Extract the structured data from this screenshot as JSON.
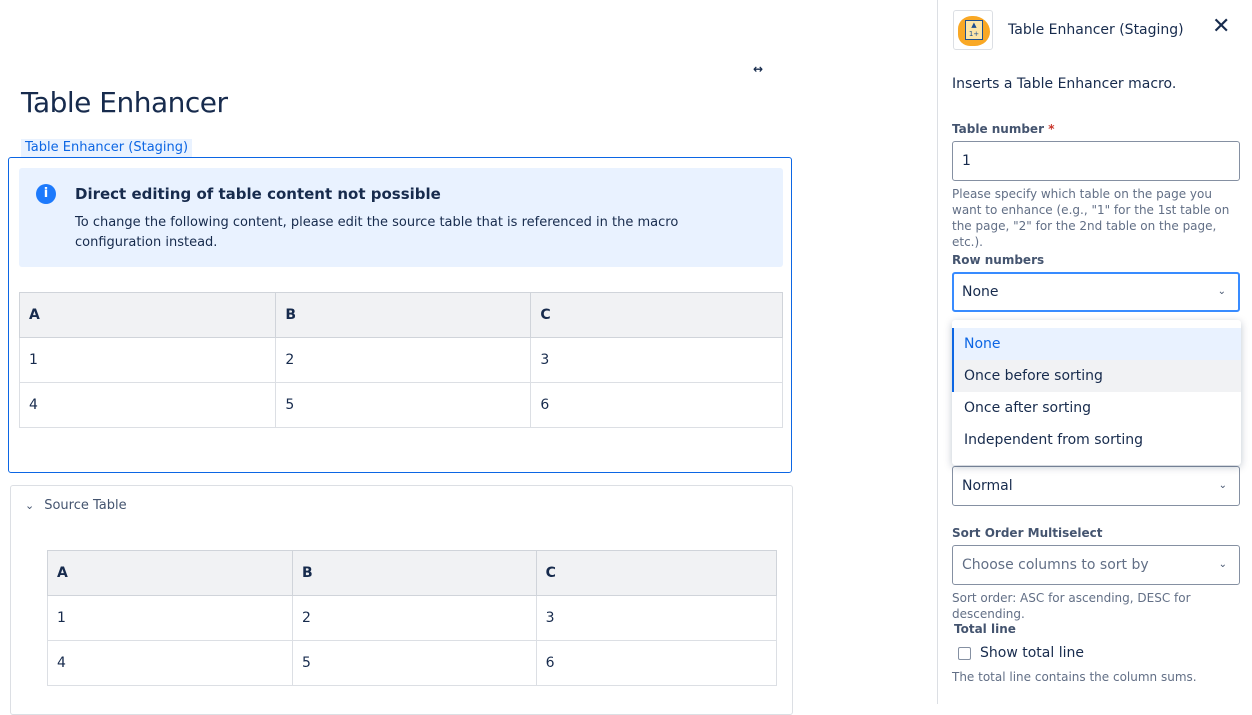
{
  "page": {
    "title": "Table Enhancer",
    "macro_label": "Table Enhancer (Staging)",
    "expand_icon": "arrows-horizontal-icon"
  },
  "info": {
    "icon": "info-icon",
    "title": "Direct editing of table content not possible",
    "text": "To change the following content, please edit the source table that is referenced in the macro configuration instead."
  },
  "table": {
    "headers": [
      "A",
      "B",
      "C"
    ],
    "rows": [
      [
        "1",
        "2",
        "3"
      ],
      [
        "4",
        "5",
        "6"
      ]
    ]
  },
  "source": {
    "label": "Source Table",
    "headers": [
      "A",
      "B",
      "C"
    ],
    "rows": [
      [
        "1",
        "2",
        "3"
      ],
      [
        "4",
        "5",
        "6"
      ]
    ]
  },
  "panel": {
    "title": "Table Enhancer (Staging)",
    "description": "Inserts a Table Enhancer macro.",
    "table_number": {
      "label": "Table number",
      "required": "*",
      "value": "1",
      "help": "Please specify which table on the page you want to enhance (e.g., \"1\" for the 1st table on the page, \"2\" for the 2nd table on the page, etc.)."
    },
    "row_numbers": {
      "label": "Row numbers",
      "value": "None",
      "options": [
        "None",
        "Once before sorting",
        "Once after sorting",
        "Independent from sorting"
      ]
    },
    "sort_select": {
      "value": "Normal"
    },
    "sort_order": {
      "label": "Sort Order Multiselect",
      "placeholder": "Choose columns to sort by",
      "help": "Sort order: ASC for ascending, DESC for descending."
    },
    "total_line": {
      "label": "Total line",
      "checkbox_label": "Show total line",
      "checked": false,
      "help": "The total line contains the column sums."
    }
  },
  "colors": {
    "accent": "#0c66e4",
    "info_bg": "#e9f2ff"
  }
}
